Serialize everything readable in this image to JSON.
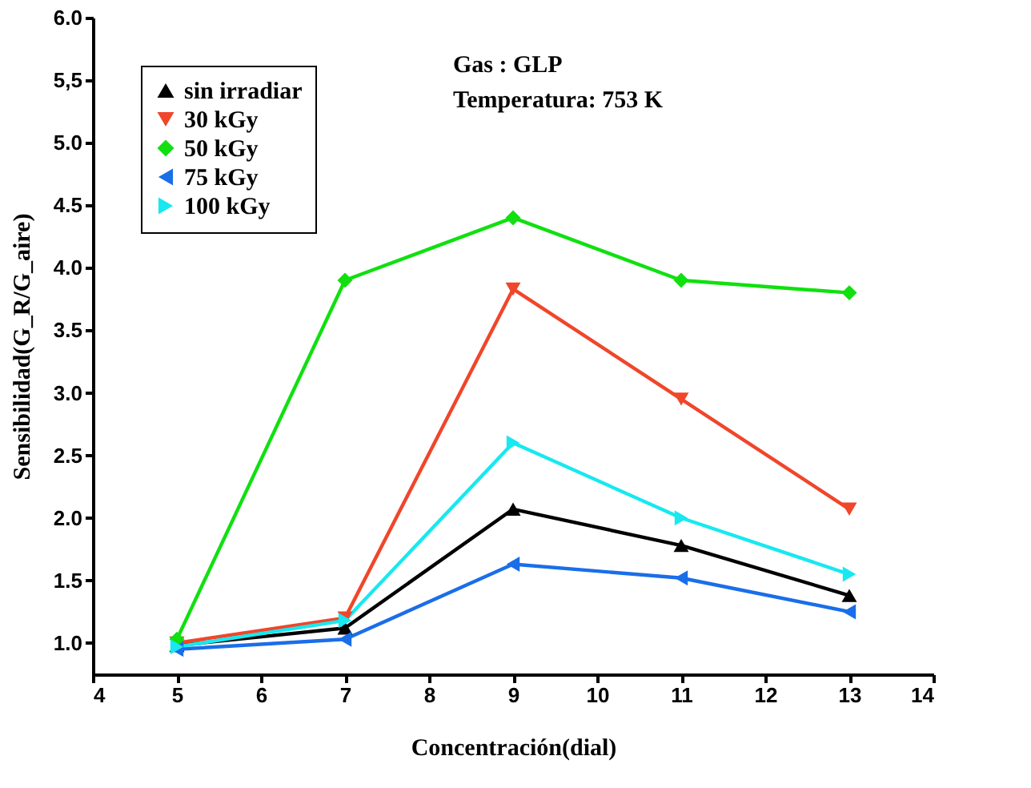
{
  "chart_data": {
    "type": "line",
    "xlabel": "Concentración(dial)",
    "ylabel": "Sensibilidad(G_R/G_aire)",
    "x": [
      5,
      7,
      9,
      11,
      13
    ],
    "series": [
      {
        "name": "sin irradiar",
        "color": "#000000",
        "marker": "triangle-up",
        "values": [
          0.98,
          1.12,
          2.07,
          1.78,
          1.38
        ]
      },
      {
        "name": "30 kGy",
        "color": "#f0462a",
        "marker": "triangle-down",
        "values": [
          1.0,
          1.2,
          3.83,
          2.95,
          2.07
        ]
      },
      {
        "name": "50 kGy",
        "color": "#10e010",
        "marker": "diamond",
        "values": [
          1.03,
          3.9,
          4.4,
          3.9,
          3.8
        ]
      },
      {
        "name": "75 kGy",
        "color": "#1a6ee8",
        "marker": "triangle-left",
        "values": [
          0.95,
          1.03,
          1.63,
          1.52,
          1.25
        ]
      },
      {
        "name": "100 kGy",
        "color": "#18e8f0",
        "marker": "triangle-right",
        "values": [
          0.97,
          1.18,
          2.6,
          2.0,
          1.55
        ]
      }
    ],
    "xlim": [
      4,
      14
    ],
    "xticks": [
      4,
      5,
      6,
      7,
      8,
      9,
      10,
      11,
      12,
      13,
      14
    ],
    "ylim": [
      0.75,
      6.0
    ],
    "yticks": [
      {
        "value": 1.0,
        "label": "1.0"
      },
      {
        "value": 1.5,
        "label": "1.5"
      },
      {
        "value": 2.0,
        "label": "2.0"
      },
      {
        "value": 2.5,
        "label": "2.5"
      },
      {
        "value": 3.0,
        "label": "3.0"
      },
      {
        "value": 3.5,
        "label": "3.5"
      },
      {
        "value": 4.0,
        "label": "4.0"
      },
      {
        "value": 4.5,
        "label": "4.5"
      },
      {
        "value": 5.0,
        "label": "5.0"
      },
      {
        "value": 5.5,
        "label": "5,5"
      },
      {
        "value": 6.0,
        "label": "6.0"
      }
    ],
    "annotations": [
      "Gas : GLP",
      "Temperatura: 753 K"
    ],
    "legend": "top left",
    "grid": false,
    "line_style": "solid"
  }
}
